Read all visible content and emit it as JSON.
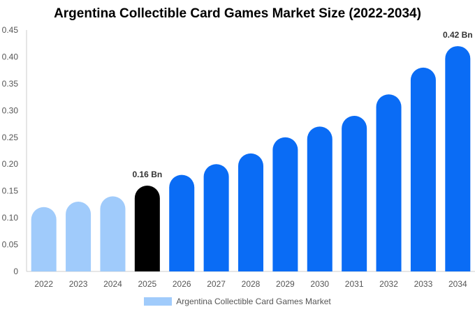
{
  "chart_data": {
    "type": "bar",
    "title": "Argentina Collectible Card Games Market Size (2022-2034)",
    "categories": [
      "2022",
      "2023",
      "2024",
      "2025",
      "2026",
      "2027",
      "2028",
      "2029",
      "2030",
      "2031",
      "2032",
      "2033",
      "2034"
    ],
    "series": [
      {
        "name": "Argentina Collectible Card Games Market",
        "values": [
          0.12,
          0.13,
          0.14,
          0.16,
          0.18,
          0.2,
          0.22,
          0.25,
          0.27,
          0.29,
          0.33,
          0.38,
          0.42
        ]
      }
    ],
    "annotations": [
      {
        "category": "2025",
        "text": "0.16 Bn"
      },
      {
        "category": "2034",
        "text": "0.42 Bn"
      }
    ],
    "y_ticks": [
      "0",
      "0.05",
      "0.10",
      "0.15",
      "0.20",
      "0.25",
      "0.30",
      "0.35",
      "0.40",
      "0.45"
    ],
    "ylim": [
      0,
      0.45
    ],
    "grid": false,
    "legend_position": "bottom",
    "colors": {
      "historical": "#a0cbfb",
      "current": "#000000",
      "forecast": "#0a6cf5",
      "legend": "#a0cbfb",
      "axis": "#cccccc",
      "tick_text": "#555555"
    },
    "bar_color_groups": [
      "historical",
      "historical",
      "historical",
      "current",
      "forecast",
      "forecast",
      "forecast",
      "forecast",
      "forecast",
      "forecast",
      "forecast",
      "forecast",
      "forecast"
    ]
  }
}
